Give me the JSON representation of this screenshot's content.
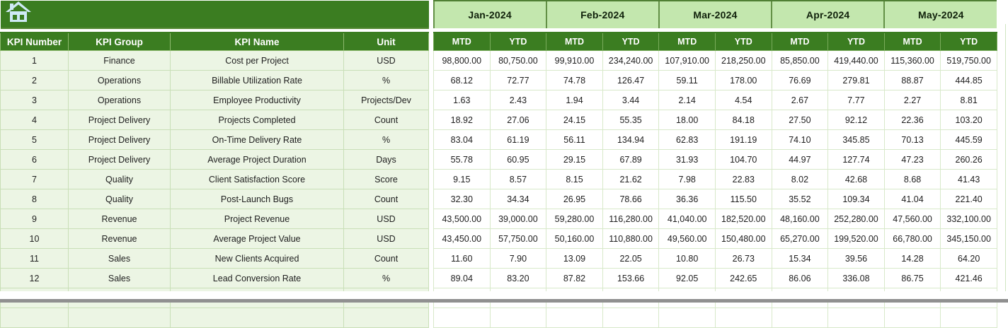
{
  "sheet": {
    "title_band": "KPI monthly dashboard header",
    "months": [
      "Jan-2024",
      "Feb-2024",
      "Mar-2024",
      "Apr-2024",
      "May-2024"
    ],
    "sub_headers": [
      "MTD",
      "YTD"
    ],
    "left_headers": [
      "KPI Number",
      "KPI Group",
      "KPI Name",
      "Unit"
    ],
    "rows": [
      {
        "num": "1",
        "group": "Finance",
        "name": "Cost per Project",
        "unit": "USD",
        "values": [
          "98,800.00",
          "80,750.00",
          "99,910.00",
          "234,240.00",
          "107,910.00",
          "218,250.00",
          "85,850.00",
          "419,440.00",
          "115,360.00",
          "519,750.00"
        ]
      },
      {
        "num": "2",
        "group": "Operations",
        "name": "Billable Utilization Rate",
        "unit": "%",
        "values": [
          "68.12",
          "72.77",
          "74.78",
          "126.47",
          "59.11",
          "178.00",
          "76.69",
          "279.81",
          "88.87",
          "444.85"
        ]
      },
      {
        "num": "3",
        "group": "Operations",
        "name": "Employee Productivity",
        "unit": "Projects/Dev",
        "values": [
          "1.63",
          "2.43",
          "1.94",
          "3.44",
          "2.14",
          "4.54",
          "2.67",
          "7.77",
          "2.27",
          "8.81"
        ]
      },
      {
        "num": "4",
        "group": "Project Delivery",
        "name": "Projects Completed",
        "unit": "Count",
        "values": [
          "18.92",
          "27.06",
          "24.15",
          "55.35",
          "18.00",
          "84.18",
          "27.50",
          "92.12",
          "22.36",
          "103.20"
        ]
      },
      {
        "num": "5",
        "group": "Project Delivery",
        "name": "On-Time Delivery Rate",
        "unit": "%",
        "values": [
          "83.04",
          "61.19",
          "56.11",
          "134.94",
          "62.83",
          "191.19",
          "74.10",
          "345.85",
          "70.13",
          "445.59"
        ]
      },
      {
        "num": "6",
        "group": "Project Delivery",
        "name": "Average Project Duration",
        "unit": "Days",
        "values": [
          "55.78",
          "60.95",
          "29.15",
          "67.89",
          "31.93",
          "104.70",
          "44.97",
          "127.74",
          "47.23",
          "260.26"
        ]
      },
      {
        "num": "7",
        "group": "Quality",
        "name": "Client Satisfaction Score",
        "unit": "Score",
        "values": [
          "9.15",
          "8.57",
          "8.15",
          "21.62",
          "7.98",
          "22.83",
          "8.02",
          "42.68",
          "8.68",
          "41.43"
        ]
      },
      {
        "num": "8",
        "group": "Quality",
        "name": "Post-Launch Bugs",
        "unit": "Count",
        "values": [
          "32.30",
          "34.34",
          "26.95",
          "78.66",
          "36.36",
          "115.50",
          "35.52",
          "109.34",
          "41.04",
          "221.40"
        ]
      },
      {
        "num": "9",
        "group": "Revenue",
        "name": "Project Revenue",
        "unit": "USD",
        "values": [
          "43,500.00",
          "39,000.00",
          "59,280.00",
          "116,280.00",
          "41,040.00",
          "182,520.00",
          "48,160.00",
          "252,280.00",
          "47,560.00",
          "332,100.00"
        ]
      },
      {
        "num": "10",
        "group": "Revenue",
        "name": "Average Project Value",
        "unit": "USD",
        "values": [
          "43,450.00",
          "57,750.00",
          "50,160.00",
          "110,880.00",
          "49,560.00",
          "150,480.00",
          "65,270.00",
          "199,520.00",
          "66,780.00",
          "345,150.00"
        ]
      },
      {
        "num": "11",
        "group": "Sales",
        "name": "New Clients Acquired",
        "unit": "Count",
        "values": [
          "11.60",
          "7.90",
          "13.09",
          "22.05",
          "10.80",
          "26.73",
          "15.34",
          "39.56",
          "14.28",
          "64.20"
        ]
      },
      {
        "num": "12",
        "group": "Sales",
        "name": "Lead Conversion Rate",
        "unit": "%",
        "values": [
          "89.04",
          "83.20",
          "87.82",
          "153.66",
          "92.05",
          "242.65",
          "86.06",
          "336.08",
          "86.75",
          "421.46"
        ]
      }
    ],
    "empty_row_count": 2,
    "icons": {
      "home": "home-icon"
    },
    "colors": {
      "header_dark_green": "#3b7d21",
      "month_band_green": "#c3e7ae",
      "row_pale_green": "#ecf5e4",
      "gridline_green": "#c9dfb7",
      "home_icon_blue": "#cfeaf6",
      "bottom_bar_gray": "#909090"
    }
  }
}
